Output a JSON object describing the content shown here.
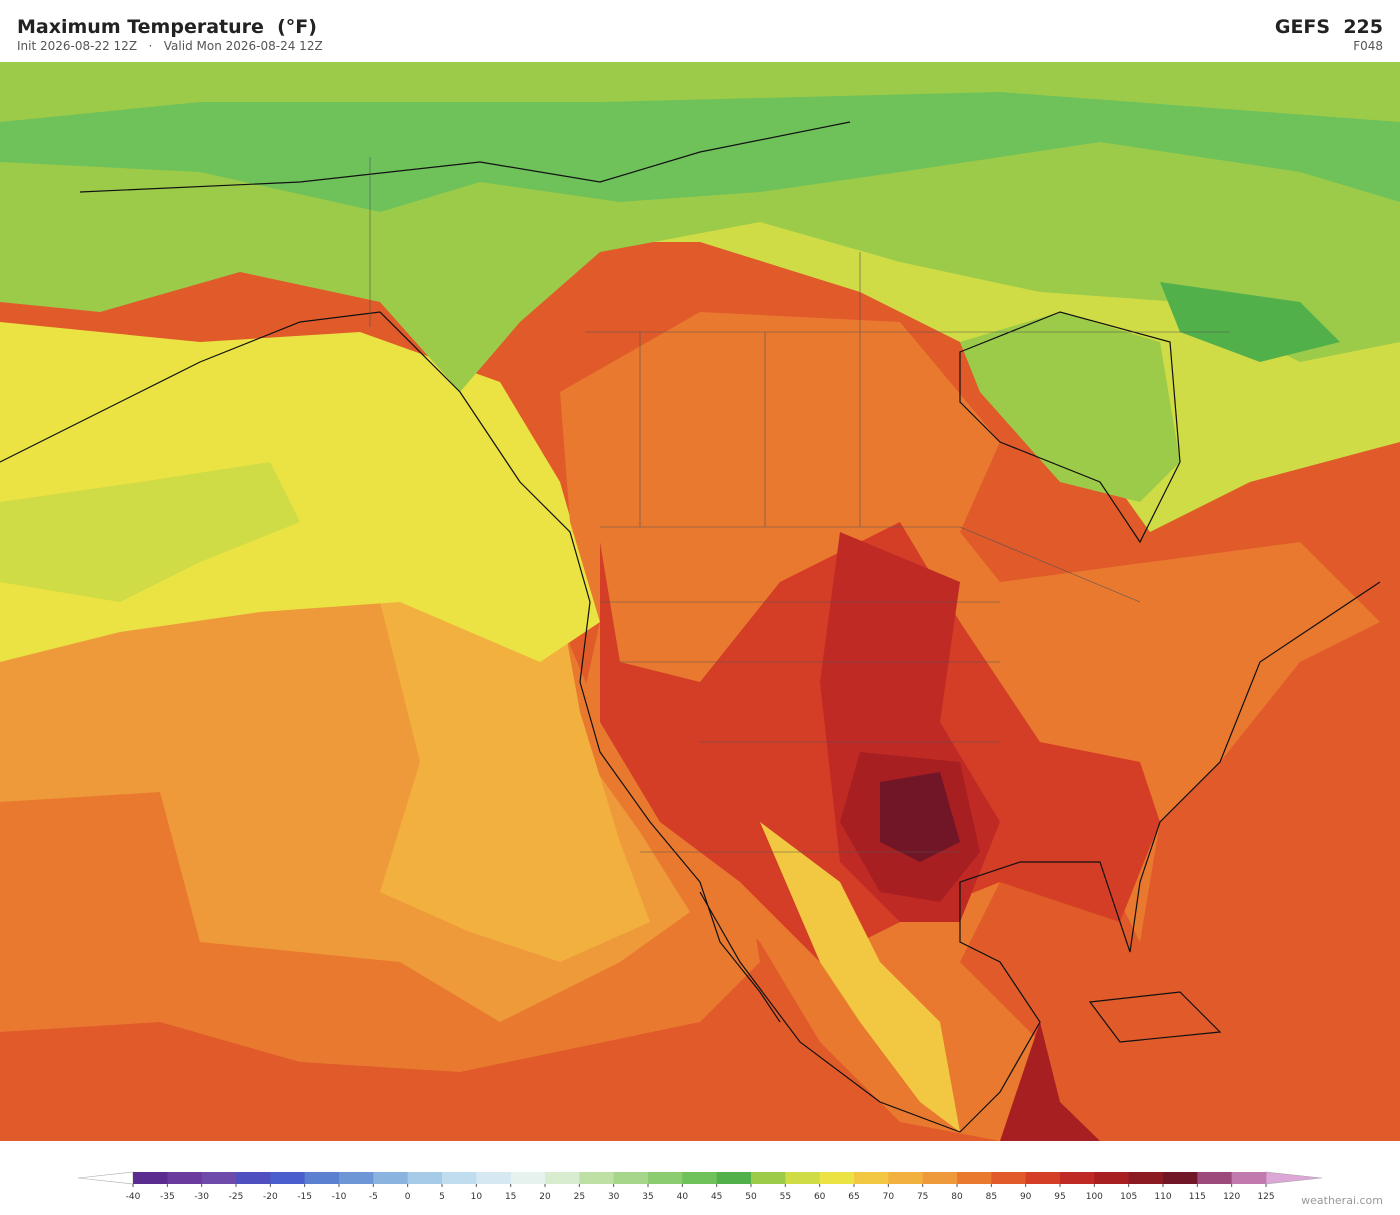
{
  "header": {
    "title": "Maximum Temperature  (°F)",
    "init": "Init 2026-08-22 12Z",
    "separator": "·",
    "valid": "Valid Mon 2026-08-24 12Z",
    "model": "GEFS  225",
    "forecast_hour": "F048"
  },
  "colorbar": {
    "ticks": [
      -40,
      -35,
      -30,
      -25,
      -20,
      -15,
      -10,
      -5,
      0,
      5,
      10,
      15,
      20,
      25,
      30,
      35,
      40,
      45,
      50,
      55,
      60,
      65,
      70,
      75,
      80,
      85,
      90,
      95,
      100,
      105,
      110,
      115,
      120,
      125
    ],
    "colors": [
      "#5b2c90",
      "#6a3a9c",
      "#6e4aab",
      "#4f4fc0",
      "#4a5fcc",
      "#5c80d0",
      "#6c96d6",
      "#8ab3df",
      "#a6cbe8",
      "#c0dcef",
      "#d6e9f3",
      "#e5f2ee",
      "#d8ecd0",
      "#bfe0a5",
      "#a5d689",
      "#8ccc70",
      "#6fc15a",
      "#52b04a",
      "#9ccb4a",
      "#cfdc45",
      "#ebe244",
      "#f2c842",
      "#f2b03e",
      "#ef9a3a",
      "#e9792f",
      "#e05a2a",
      "#d43e26",
      "#c02a24",
      "#a81f22",
      "#8c1a22",
      "#701626",
      "#9c4a7c",
      "#c07aad"
    ],
    "under_color": "#ffffff",
    "over_color": "#dca6d6"
  },
  "footer": {
    "credit": "weatherai.com"
  }
}
